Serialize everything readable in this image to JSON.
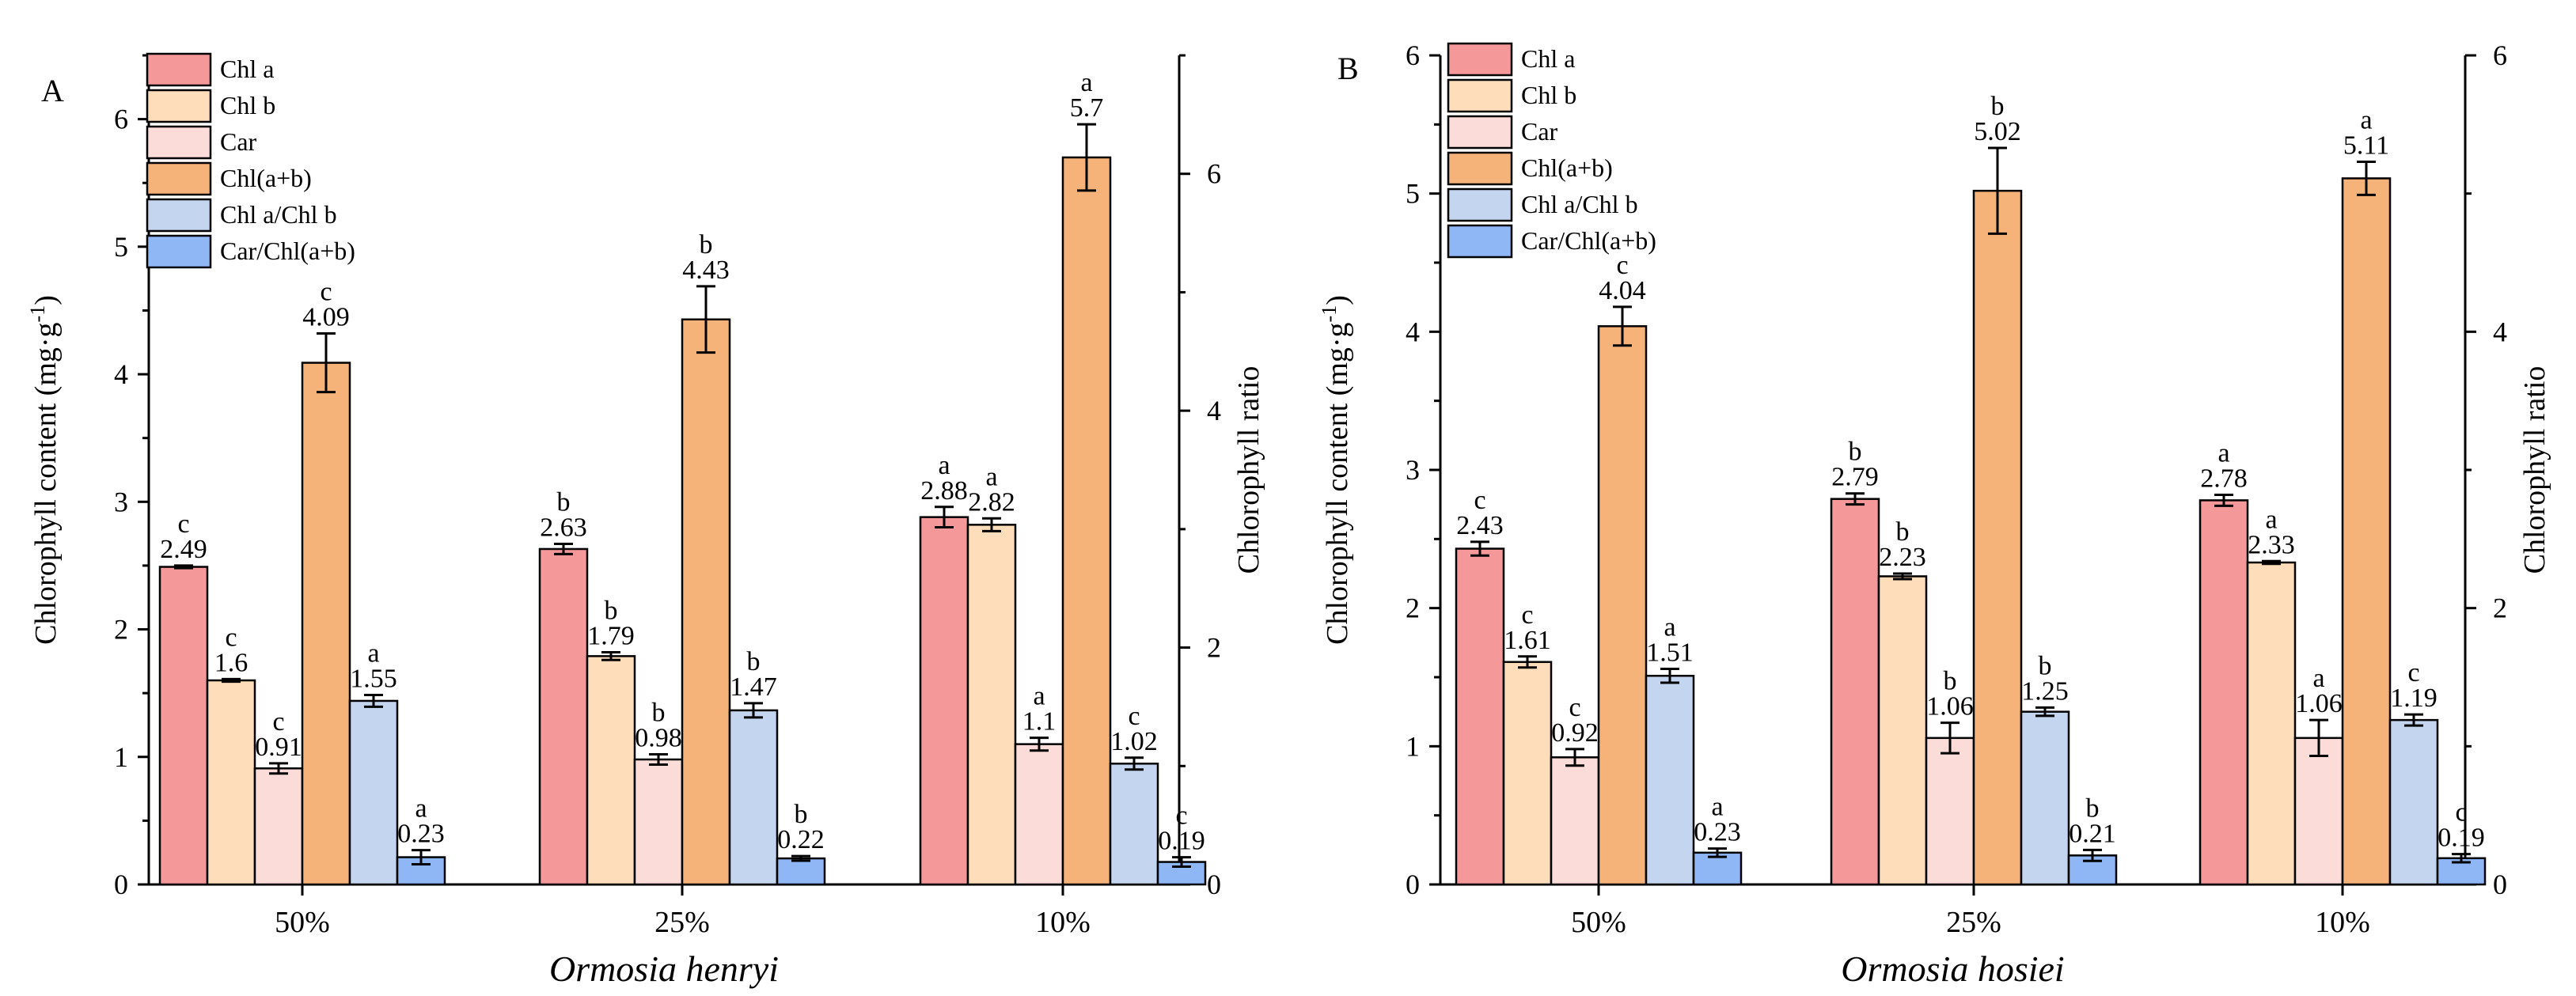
{
  "chart_data": [
    {
      "type": "bar",
      "panel_label": "A",
      "xlabel": "Ormosia henryi",
      "ylabel_left": "Chlorophyll content (mg·g",
      "ylabel_left_sup": "-1",
      "ylabel_left_end": ")",
      "ylabel_right": "Chlorophyll ratio",
      "categories": [
        "50%",
        "25%",
        "10%"
      ],
      "ylim_left": [
        0,
        6.5
      ],
      "yticks_left": [
        "0",
        "1",
        "2",
        "3",
        "4",
        "5",
        "6"
      ],
      "ylim_right": [
        0,
        7
      ],
      "yticks_right": [
        "0",
        "2",
        "4",
        "6"
      ],
      "series": [
        {
          "name": "Chl a",
          "axis": "left",
          "color": "#F4989A",
          "values": [
            2.49,
            2.63,
            2.88
          ],
          "labels": [
            "2.49",
            "2.63",
            "2.88"
          ],
          "letters": [
            "c",
            "b",
            "a"
          ],
          "errors": [
            0.01,
            0.04,
            0.08
          ]
        },
        {
          "name": "Chl b",
          "axis": "left",
          "color": "#FEDDBA",
          "values": [
            1.6,
            1.79,
            2.82
          ],
          "labels": [
            "1.6",
            "1.79",
            "2.82"
          ],
          "letters": [
            "c",
            "b",
            "a"
          ],
          "errors": [
            0.01,
            0.03,
            0.05
          ]
        },
        {
          "name": "Car",
          "axis": "left",
          "color": "#FCDCD8",
          "values": [
            0.91,
            0.98,
            1.1
          ],
          "labels": [
            "0.91",
            "0.98",
            "1.1"
          ],
          "letters": [
            "c",
            "b",
            "a"
          ],
          "errors": [
            0.04,
            0.04,
            0.05
          ]
        },
        {
          "name": "Chl(a+b)",
          "axis": "left",
          "color": "#F5B37A",
          "values": [
            4.09,
            4.43,
            5.7
          ],
          "labels": [
            "4.09",
            "4.43",
            "5.7"
          ],
          "letters": [
            "c",
            "b",
            "a"
          ],
          "errors": [
            0.23,
            0.26,
            0.26
          ]
        },
        {
          "name": "Chl a/Chl b",
          "axis": "right",
          "color": "#C4D5EF",
          "values": [
            1.55,
            1.47,
            1.02
          ],
          "labels": [
            "1.55",
            "1.47",
            "1.02"
          ],
          "letters": [
            "a",
            "b",
            "c"
          ],
          "errors": [
            0.05,
            0.06,
            0.05
          ]
        },
        {
          "name": "Car/Chl(a+b)",
          "axis": "right",
          "color": "#8FB6F5",
          "values": [
            0.23,
            0.22,
            0.19
          ],
          "labels": [
            "0.23",
            "0.22",
            "0.19"
          ],
          "letters": [
            "a",
            "b",
            "c"
          ],
          "errors": [
            0.06,
            0.02,
            0.04
          ]
        }
      ]
    },
    {
      "type": "bar",
      "panel_label": "B",
      "xlabel": "Ormosia hosiei",
      "ylabel_left": "Chlorophyll content (mg·g",
      "ylabel_left_sup": "-1",
      "ylabel_left_end": ")",
      "ylabel_right": "Chlorophyll ratio",
      "categories": [
        "50%",
        "25%",
        "10%"
      ],
      "ylim_left": [
        0,
        6
      ],
      "yticks_left": [
        "0",
        "1",
        "2",
        "3",
        "4",
        "5",
        "6"
      ],
      "ylim_right": [
        0,
        6
      ],
      "yticks_right": [
        "0",
        "2",
        "4",
        "6"
      ],
      "series": [
        {
          "name": "Chl a",
          "axis": "left",
          "color": "#F4989A",
          "values": [
            2.43,
            2.79,
            2.78
          ],
          "labels": [
            "2.43",
            "2.79",
            "2.78"
          ],
          "letters": [
            "c",
            "b",
            "a"
          ],
          "errors": [
            0.05,
            0.04,
            0.04
          ]
        },
        {
          "name": "Chl b",
          "axis": "left",
          "color": "#FEDDBA",
          "values": [
            1.61,
            2.23,
            2.33
          ],
          "labels": [
            "1.61",
            "2.23",
            "2.33"
          ],
          "letters": [
            "c",
            "b",
            "a"
          ],
          "errors": [
            0.04,
            0.02,
            0.01
          ]
        },
        {
          "name": "Car",
          "axis": "left",
          "color": "#FCDCD8",
          "values": [
            0.92,
            1.06,
            1.06
          ],
          "labels": [
            "0.92",
            "1.06",
            "1.06"
          ],
          "letters": [
            "c",
            "b",
            "a"
          ],
          "errors": [
            0.06,
            0.11,
            0.13
          ]
        },
        {
          "name": "Chl(a+b)",
          "axis": "left",
          "color": "#F5B37A",
          "values": [
            4.04,
            5.02,
            5.11
          ],
          "labels": [
            "4.04",
            "5.02",
            "5.11"
          ],
          "letters": [
            "c",
            "b",
            "a"
          ],
          "errors": [
            0.14,
            0.31,
            0.12
          ]
        },
        {
          "name": "Chl a/Chl b",
          "axis": "right",
          "color": "#C4D5EF",
          "values": [
            1.51,
            1.25,
            1.19
          ],
          "labels": [
            "1.51",
            "1.25",
            "1.19"
          ],
          "letters": [
            "a",
            "b",
            "c"
          ],
          "errors": [
            0.05,
            0.03,
            0.04
          ]
        },
        {
          "name": "Car/Chl(a+b)",
          "axis": "right",
          "color": "#8FB6F5",
          "values": [
            0.23,
            0.21,
            0.19
          ],
          "labels": [
            "0.23",
            "0.21",
            "0.19"
          ],
          "letters": [
            "a",
            "b",
            "c"
          ],
          "errors": [
            0.03,
            0.04,
            0.03
          ]
        }
      ]
    }
  ]
}
